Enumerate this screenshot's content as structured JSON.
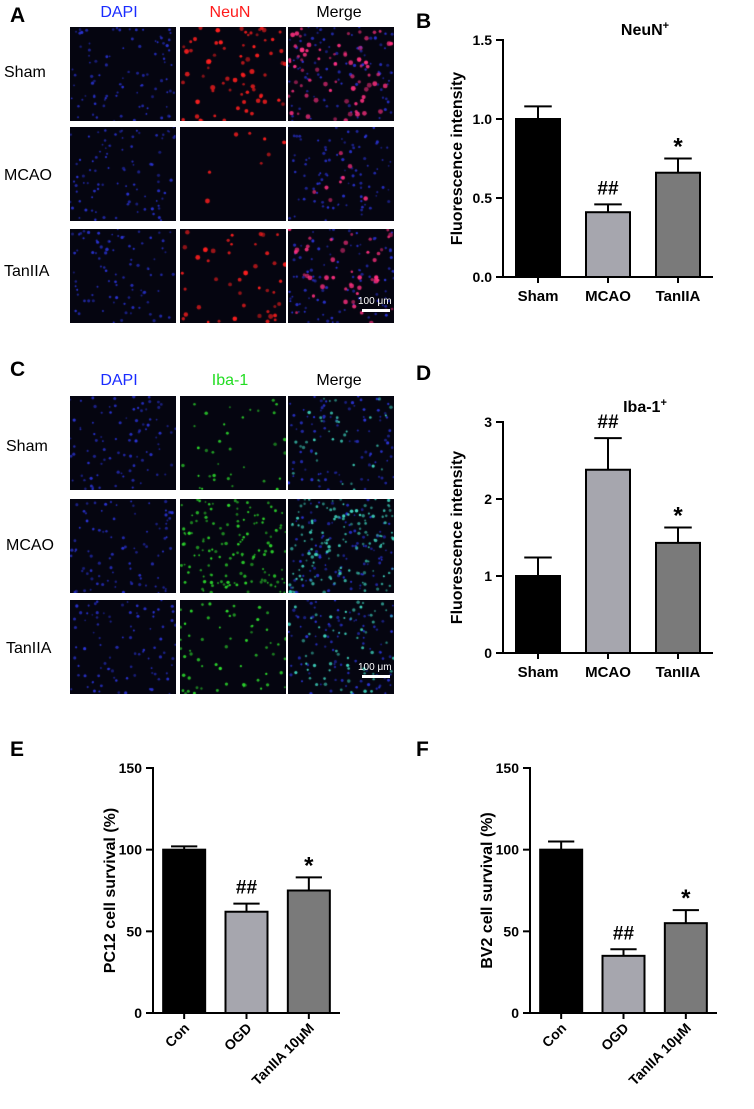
{
  "panels": {
    "A": "A",
    "B": "B",
    "C": "C",
    "D": "D",
    "E": "E",
    "F": "F"
  },
  "colors": {
    "dapi": "#1a2cff",
    "neun": "#ff1a1a",
    "iba1": "#22dd22",
    "sham_bar": "#000000",
    "mcao_bar": "#a6a6ae",
    "tan_bar": "#7a7a7a"
  },
  "micrographs": {
    "A": {
      "columns": [
        "DAPI",
        "NeuN",
        "Merge"
      ],
      "rows": [
        "Sham",
        "MCAO",
        "TanIIA"
      ],
      "scale_bar": "100 μm"
    },
    "C": {
      "columns": [
        "DAPI",
        "Iba-1",
        "Merge"
      ],
      "rows": [
        "Sham",
        "MCAO",
        "TanIIA"
      ],
      "scale_bar": "100 μm"
    }
  },
  "chart_data": [
    {
      "panel": "B",
      "type": "bar",
      "title": "NeuN",
      "title_sup": "+",
      "categories": [
        "Sham",
        "MCAO",
        "TanIIA"
      ],
      "values": [
        1.0,
        0.41,
        0.66
      ],
      "errors": [
        0.08,
        0.05,
        0.09
      ],
      "annotations": [
        "",
        "##",
        "*"
      ],
      "ylabel": "Fluorescence intensity",
      "xlabel": "",
      "ylim": [
        0,
        1.5
      ],
      "yticks": [
        0.0,
        0.5,
        1.0,
        1.5
      ],
      "ytick_labels": [
        "0.0",
        "0.5",
        "1.0",
        "1.5"
      ],
      "rotate_xticks": false
    },
    {
      "panel": "D",
      "type": "bar",
      "title": "Iba-1",
      "title_sup": "+",
      "categories": [
        "Sham",
        "MCAO",
        "TanIIA"
      ],
      "values": [
        1.0,
        2.38,
        1.43
      ],
      "errors": [
        0.24,
        0.41,
        0.2
      ],
      "annotations": [
        "",
        "##",
        "*"
      ],
      "ylabel": "Fluorescence intensity",
      "xlabel": "",
      "ylim": [
        0,
        3
      ],
      "yticks": [
        0,
        1,
        2,
        3
      ],
      "ytick_labels": [
        "0",
        "1",
        "2",
        "3"
      ],
      "rotate_xticks": false
    },
    {
      "panel": "E",
      "type": "bar",
      "title": "",
      "title_sup": "",
      "categories": [
        "Con",
        "OGD",
        "TanIIA 10μM"
      ],
      "values": [
        100,
        62,
        75
      ],
      "errors": [
        2,
        5,
        8
      ],
      "annotations": [
        "",
        "##",
        "*"
      ],
      "ylabel": "PC12 cell survival (%)",
      "xlabel": "",
      "ylim": [
        0,
        150
      ],
      "yticks": [
        0,
        50,
        100,
        150
      ],
      "ytick_labels": [
        "0",
        "50",
        "100",
        "150"
      ],
      "rotate_xticks": true
    },
    {
      "panel": "F",
      "type": "bar",
      "title": "",
      "title_sup": "",
      "categories": [
        "Con",
        "OGD",
        "TanIIA 10μM"
      ],
      "values": [
        100,
        35,
        55
      ],
      "errors": [
        5,
        4,
        8
      ],
      "annotations": [
        "",
        "##",
        "*"
      ],
      "ylabel": "BV2 cell survival (%)",
      "xlabel": "",
      "ylim": [
        0,
        150
      ],
      "yticks": [
        0,
        50,
        100,
        150
      ],
      "ytick_labels": [
        "0",
        "50",
        "100",
        "150"
      ],
      "rotate_xticks": true
    }
  ]
}
